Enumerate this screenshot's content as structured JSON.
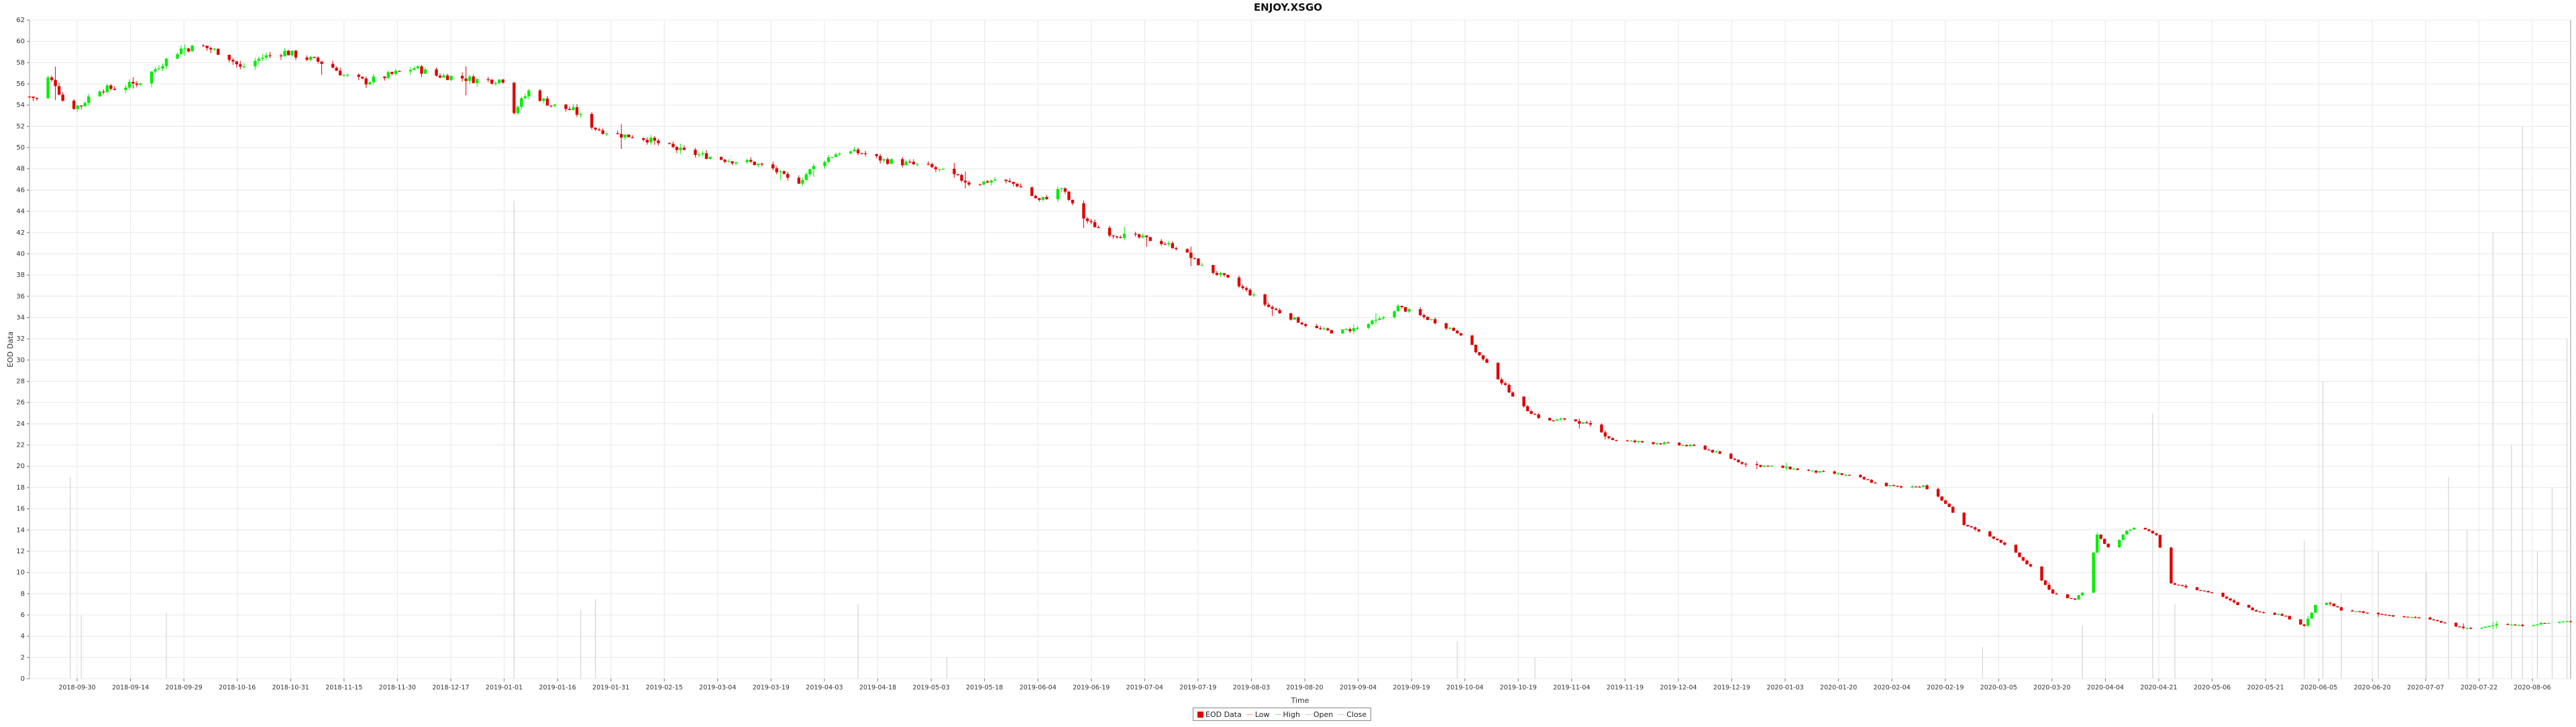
{
  "chart_data": {
    "type": "candlestick",
    "title": "ENJOY.XSGO",
    "xlabel": "Time",
    "ylabel": "EOD Data",
    "ylim": [
      0,
      62
    ],
    "yticks": [
      0,
      2,
      4,
      6,
      8,
      10,
      12,
      14,
      16,
      18,
      20,
      22,
      24,
      26,
      28,
      30,
      32,
      34,
      36,
      38,
      40,
      42,
      44,
      46,
      48,
      50,
      52,
      54,
      56,
      58,
      60,
      62
    ],
    "xlim": [
      "2018-09-26",
      "2020-08-13"
    ],
    "xticks": [
      "2018-09-30",
      "2018-09-14",
      "2018-09-29",
      "2018-10-16",
      "2018-10-31",
      "2018-11-15",
      "2018-11-30",
      "2018-12-17",
      "2019-01-01",
      "2019-01-16",
      "2019-01-31",
      "2019-02-15",
      "2019-03-04",
      "2019-03-19",
      "2019-04-03",
      "2019-04-18",
      "2019-05-03",
      "2019-05-18",
      "2019-06-04",
      "2019-06-19",
      "2019-07-04",
      "2019-07-19",
      "2019-08-03",
      "2019-08-20",
      "2019-09-04",
      "2019-09-19",
      "2019-10-04",
      "2019-10-19",
      "2019-11-04",
      "2019-11-19",
      "2019-12-04",
      "2019-12-19",
      "2020-01-03",
      "2020-01-20",
      "2020-02-04",
      "2020-02-19",
      "2020-03-05",
      "2020-03-20",
      "2020-04-04",
      "2020-04-21",
      "2020-05-06",
      "2020-05-21",
      "2020-06-05",
      "2020-06-20",
      "2020-07-07",
      "2020-07-22",
      "2020-08-06"
    ],
    "grid": true,
    "legend": {
      "position": "bottom-center",
      "items": [
        {
          "label": "EOD Data",
          "kind": "box",
          "color": "#dd0000"
        },
        {
          "label": "Low",
          "kind": "line",
          "color": "#ff9999"
        },
        {
          "label": "High",
          "kind": "line",
          "color": "#99dd99"
        },
        {
          "label": "Open",
          "kind": "line",
          "color": "#cccccc"
        },
        {
          "label": "Close",
          "kind": "line",
          "color": "#cccccc"
        }
      ]
    },
    "colors": {
      "up": "#00ee00",
      "down": "#dd0000",
      "volume": "#d4d4d4",
      "grid": "#e8e8e8"
    },
    "price_path": [
      [
        "2018-09-26",
        54.8
      ],
      [
        "2018-09-29",
        54.5
      ],
      [
        "2018-10-01",
        56.5
      ],
      [
        "2018-10-03",
        56.0
      ],
      [
        "2018-10-06",
        53.7
      ],
      [
        "2018-10-10",
        54.0
      ],
      [
        "2018-10-14",
        55.5
      ],
      [
        "2018-10-20",
        55.6
      ],
      [
        "2018-10-26",
        56.2
      ],
      [
        "2018-11-01",
        58.0
      ],
      [
        "2018-11-06",
        59.3
      ],
      [
        "2018-11-12",
        59.5
      ],
      [
        "2018-11-18",
        58.8
      ],
      [
        "2018-11-22",
        57.5
      ],
      [
        "2018-11-28",
        58.5
      ],
      [
        "2018-12-04",
        59.0
      ],
      [
        "2018-12-10",
        58.4
      ],
      [
        "2018-12-16",
        57.8
      ],
      [
        "2018-12-20",
        56.8
      ],
      [
        "2018-12-26",
        56.2
      ],
      [
        "2019-01-02",
        56.9
      ],
      [
        "2019-01-08",
        57.5
      ],
      [
        "2019-01-14",
        56.8
      ],
      [
        "2019-01-20",
        56.6
      ],
      [
        "2019-01-26",
        56.3
      ],
      [
        "2019-02-01",
        56.4
      ],
      [
        "2019-02-04",
        53.5
      ],
      [
        "2019-02-08",
        55.3
      ],
      [
        "2019-02-14",
        54.0
      ],
      [
        "2019-02-20",
        53.5
      ],
      [
        "2019-02-26",
        51.8
      ],
      [
        "2019-03-04",
        51.2
      ],
      [
        "2019-03-10",
        51.0
      ],
      [
        "2019-03-16",
        50.3
      ],
      [
        "2019-03-22",
        49.6
      ],
      [
        "2019-03-28",
        49.2
      ],
      [
        "2019-04-03",
        48.8
      ],
      [
        "2019-04-09",
        48.6
      ],
      [
        "2019-04-15",
        48.0
      ],
      [
        "2019-04-21",
        46.5
      ],
      [
        "2019-04-27",
        48.5
      ],
      [
        "2019-05-03",
        49.6
      ],
      [
        "2019-05-09",
        49.5
      ],
      [
        "2019-05-15",
        48.8
      ],
      [
        "2019-05-21",
        48.5
      ],
      [
        "2019-05-27",
        48.2
      ],
      [
        "2019-06-02",
        47.5
      ],
      [
        "2019-06-08",
        46.5
      ],
      [
        "2019-06-14",
        47.0
      ],
      [
        "2019-06-20",
        46.5
      ],
      [
        "2019-06-26",
        45.0
      ],
      [
        "2019-06-29",
        45.5
      ],
      [
        "2019-07-02",
        46.2
      ],
      [
        "2019-07-06",
        44.0
      ],
      [
        "2019-07-10",
        42.8
      ],
      [
        "2019-07-16",
        41.8
      ],
      [
        "2019-07-22",
        41.6
      ],
      [
        "2019-07-28",
        41.2
      ],
      [
        "2019-08-03",
        40.5
      ],
      [
        "2019-08-09",
        38.8
      ],
      [
        "2019-08-15",
        37.8
      ],
      [
        "2019-08-21",
        36.5
      ],
      [
        "2019-08-27",
        35.0
      ],
      [
        "2019-09-02",
        34.0
      ],
      [
        "2019-09-08",
        33.0
      ],
      [
        "2019-09-14",
        32.6
      ],
      [
        "2019-09-20",
        33.0
      ],
      [
        "2019-09-26",
        33.8
      ],
      [
        "2019-10-01",
        35.0
      ],
      [
        "2019-10-06",
        34.3
      ],
      [
        "2019-10-12",
        33.5
      ],
      [
        "2019-10-18",
        32.5
      ],
      [
        "2019-10-24",
        30.0
      ],
      [
        "2019-10-30",
        27.5
      ],
      [
        "2019-11-04",
        25.5
      ],
      [
        "2019-11-10",
        24.2
      ],
      [
        "2019-11-16",
        24.5
      ],
      [
        "2019-11-22",
        23.8
      ],
      [
        "2019-11-28",
        22.5
      ],
      [
        "2019-12-04",
        22.3
      ],
      [
        "2019-12-10",
        22.2
      ],
      [
        "2019-12-16",
        22.0
      ],
      [
        "2019-12-22",
        21.8
      ],
      [
        "2019-12-28",
        21.0
      ],
      [
        "2020-01-03",
        20.2
      ],
      [
        "2020-01-09",
        20.0
      ],
      [
        "2020-01-15",
        19.8
      ],
      [
        "2020-01-21",
        19.5
      ],
      [
        "2020-01-27",
        19.3
      ],
      [
        "2020-02-02",
        19.0
      ],
      [
        "2020-02-08",
        18.3
      ],
      [
        "2020-02-14",
        18.0
      ],
      [
        "2020-02-20",
        18.2
      ],
      [
        "2020-02-26",
        16.5
      ],
      [
        "2020-03-02",
        14.5
      ],
      [
        "2020-03-08",
        13.5
      ],
      [
        "2020-03-14",
        12.5
      ],
      [
        "2020-03-20",
        10.5
      ],
      [
        "2020-03-26",
        8.0
      ],
      [
        "2020-04-01",
        7.5
      ],
      [
        "2020-04-04",
        8.5
      ],
      [
        "2020-04-07",
        13.5
      ],
      [
        "2020-04-11",
        12.0
      ],
      [
        "2020-04-15",
        14.0
      ],
      [
        "2020-04-19",
        14.3
      ],
      [
        "2020-04-23",
        13.5
      ],
      [
        "2020-04-27",
        9.0
      ],
      [
        "2020-05-03",
        8.5
      ],
      [
        "2020-05-09",
        8.0
      ],
      [
        "2020-05-15",
        7.0
      ],
      [
        "2020-05-21",
        6.3
      ],
      [
        "2020-05-27",
        6.0
      ],
      [
        "2020-06-02",
        5.0
      ],
      [
        "2020-06-06",
        7.5
      ],
      [
        "2020-06-12",
        6.5
      ],
      [
        "2020-06-18",
        6.2
      ],
      [
        "2020-06-24",
        6.0
      ],
      [
        "2020-06-30",
        5.8
      ],
      [
        "2020-07-06",
        5.6
      ],
      [
        "2020-07-12",
        5.0
      ],
      [
        "2020-07-18",
        4.6
      ],
      [
        "2020-07-24",
        5.2
      ],
      [
        "2020-07-30",
        5.0
      ],
      [
        "2020-08-05",
        5.2
      ],
      [
        "2020-08-13",
        5.4
      ]
    ],
    "volume_spikes": [
      [
        "2018-10-07",
        19
      ],
      [
        "2018-10-10",
        6
      ],
      [
        "2018-11-02",
        6.2
      ],
      [
        "2019-02-04",
        45
      ],
      [
        "2019-02-22",
        6.5
      ],
      [
        "2019-02-26",
        7.5
      ],
      [
        "2019-05-08",
        7
      ],
      [
        "2019-06-01",
        2
      ],
      [
        "2019-10-17",
        3.5
      ],
      [
        "2019-11-07",
        2
      ],
      [
        "2020-03-07",
        3
      ],
      [
        "2020-04-03",
        5
      ],
      [
        "2020-04-22",
        25
      ],
      [
        "2020-04-28",
        7
      ],
      [
        "2020-06-02",
        13
      ],
      [
        "2020-06-07",
        28
      ],
      [
        "2020-06-12",
        8
      ],
      [
        "2020-06-22",
        12
      ],
      [
        "2020-07-05",
        10
      ],
      [
        "2020-07-11",
        19
      ],
      [
        "2020-07-16",
        14
      ],
      [
        "2020-07-23",
        42
      ],
      [
        "2020-07-28",
        22
      ],
      [
        "2020-07-31",
        52
      ],
      [
        "2020-08-04",
        12
      ],
      [
        "2020-08-08",
        18
      ],
      [
        "2020-08-12",
        32
      ]
    ]
  }
}
